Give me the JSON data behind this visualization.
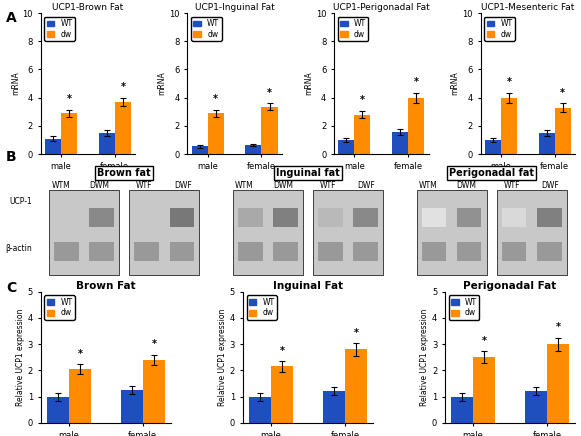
{
  "panel_A": {
    "subplots": [
      {
        "title": "UCP1-Brown Fat",
        "ylabel": "mRNA",
        "ylim": [
          0,
          10
        ],
        "yticks": [
          0,
          2,
          4,
          6,
          8,
          10
        ],
        "groups": [
          "male",
          "female"
        ],
        "wt_values": [
          1.1,
          1.5
        ],
        "dw_values": [
          2.9,
          3.7
        ],
        "wt_errors": [
          0.15,
          0.2
        ],
        "dw_errors": [
          0.25,
          0.3
        ],
        "sig_dw": [
          true,
          true
        ]
      },
      {
        "title": "UCP1-Inguinal Fat",
        "ylabel": "mRNA",
        "ylim": [
          0,
          10
        ],
        "yticks": [
          0,
          2,
          4,
          6,
          8,
          10
        ],
        "groups": [
          "male",
          "female"
        ],
        "wt_values": [
          0.55,
          0.65
        ],
        "dw_values": [
          2.9,
          3.35
        ],
        "wt_errors": [
          0.1,
          0.1
        ],
        "dw_errors": [
          0.25,
          0.25
        ],
        "sig_dw": [
          true,
          true
        ]
      },
      {
        "title": "UCP1-Perigonadal Fat",
        "ylabel": "mRNA",
        "ylim": [
          0,
          10
        ],
        "yticks": [
          0,
          2,
          4,
          6,
          8,
          10
        ],
        "groups": [
          "male",
          "female"
        ],
        "wt_values": [
          1.0,
          1.55
        ],
        "dw_values": [
          2.8,
          4.0
        ],
        "wt_errors": [
          0.15,
          0.2
        ],
        "dw_errors": [
          0.25,
          0.35
        ],
        "sig_dw": [
          true,
          true
        ]
      },
      {
        "title": "UCP1-Mesenteric Fat",
        "ylabel": "mRNA",
        "ylim": [
          0,
          10
        ],
        "yticks": [
          0,
          2,
          4,
          6,
          8,
          10
        ],
        "groups": [
          "male",
          "female"
        ],
        "wt_values": [
          1.0,
          1.5
        ],
        "dw_values": [
          4.0,
          3.3
        ],
        "wt_errors": [
          0.15,
          0.2
        ],
        "dw_errors": [
          0.35,
          0.3
        ],
        "sig_dw": [
          true,
          true
        ]
      }
    ]
  },
  "panel_B": {
    "tissues": [
      "Brown fat",
      "Inguinal fat",
      "Perigonadal fat"
    ],
    "col_labels": [
      "WTM",
      "DWM",
      "WTF",
      "DWF"
    ],
    "row_labels": [
      "UCP-1",
      "β-actin"
    ]
  },
  "panel_C": {
    "subplots": [
      {
        "title": "Brown Fat",
        "ylabel": "Relative UCP1 expression",
        "ylim": [
          0,
          5
        ],
        "yticks": [
          0,
          1,
          2,
          3,
          4,
          5
        ],
        "groups": [
          "male",
          "female"
        ],
        "wt_values": [
          1.0,
          1.25
        ],
        "dw_values": [
          2.05,
          2.4
        ],
        "wt_errors": [
          0.15,
          0.15
        ],
        "dw_errors": [
          0.18,
          0.2
        ],
        "sig_dw": [
          true,
          true
        ]
      },
      {
        "title": "Inguinal Fat",
        "ylabel": "Relative UCP1 expression",
        "ylim": [
          0,
          5
        ],
        "yticks": [
          0,
          1,
          2,
          3,
          4,
          5
        ],
        "groups": [
          "male",
          "female"
        ],
        "wt_values": [
          1.0,
          1.2
        ],
        "dw_values": [
          2.15,
          2.8
        ],
        "wt_errors": [
          0.15,
          0.15
        ],
        "dw_errors": [
          0.2,
          0.25
        ],
        "sig_dw": [
          true,
          true
        ]
      },
      {
        "title": "Perigonadal Fat",
        "ylabel": "Relative UCP1 expression",
        "ylim": [
          0,
          5
        ],
        "yticks": [
          0,
          1,
          2,
          3,
          4,
          5
        ],
        "groups": [
          "male",
          "female"
        ],
        "wt_values": [
          1.0,
          1.2
        ],
        "dw_values": [
          2.5,
          3.0
        ],
        "wt_errors": [
          0.15,
          0.15
        ],
        "dw_errors": [
          0.22,
          0.25
        ],
        "sig_dw": [
          true,
          true
        ]
      }
    ]
  },
  "wt_color": "#1F4FBF",
  "dw_color": "#FF8C00",
  "bar_width": 0.3,
  "background_color": "#ffffff",
  "label_A": "A",
  "label_B": "B",
  "label_C": "C"
}
